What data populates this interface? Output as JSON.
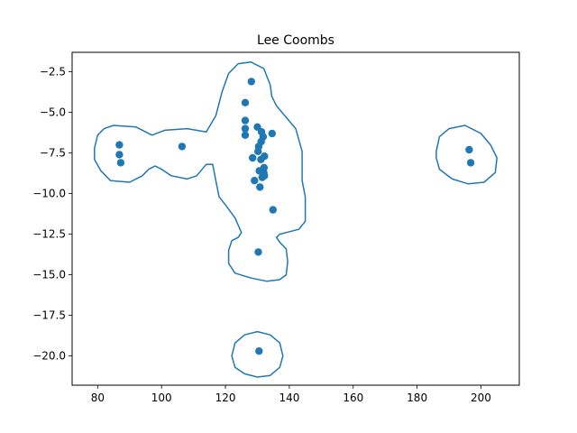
{
  "chart_data": {
    "type": "scatter",
    "title": "Lee Coombs",
    "xlabel": "",
    "ylabel": "",
    "xlim": [
      72,
      212
    ],
    "ylim": [
      -21.8,
      -1.3
    ],
    "xticks": [
      80,
      100,
      120,
      140,
      160,
      180,
      200
    ],
    "xtick_labels": [
      "80",
      "100",
      "120",
      "140",
      "160",
      "180",
      "200"
    ],
    "yticks": [
      -2.5,
      -5.0,
      -7.5,
      -10.0,
      -12.5,
      -15.0,
      -17.5,
      -20.0
    ],
    "ytick_labels": [
      "−2.5",
      "−5.0",
      "−7.5",
      "−10.0",
      "−12.5",
      "−15.0",
      "−17.5",
      "−20.0"
    ],
    "grid": false,
    "color": "#1f77b4",
    "series": [
      {
        "points": [
          [
            86.8,
            -7.0
          ],
          [
            86.8,
            -7.6
          ],
          [
            87.2,
            -8.1
          ],
          [
            106.4,
            -7.1
          ],
          [
            128.1,
            -3.1
          ],
          [
            126.2,
            -4.4
          ],
          [
            126.2,
            -5.5
          ],
          [
            126.2,
            -6.0
          ],
          [
            126.2,
            -6.4
          ],
          [
            130.0,
            -5.9
          ],
          [
            131.3,
            -6.2
          ],
          [
            131.8,
            -6.5
          ],
          [
            134.6,
            -6.3
          ],
          [
            131.2,
            -6.8
          ],
          [
            130.4,
            -7.1
          ],
          [
            130.2,
            -7.4
          ],
          [
            128.5,
            -7.8
          ],
          [
            131.1,
            -7.9
          ],
          [
            132.2,
            -7.7
          ],
          [
            132.1,
            -8.4
          ],
          [
            132.0,
            -8.7
          ],
          [
            130.6,
            -8.6
          ],
          [
            132.2,
            -8.9
          ],
          [
            131.5,
            -9.0
          ],
          [
            129.1,
            -9.2
          ],
          [
            130.8,
            -9.6
          ],
          [
            134.9,
            -11.0
          ],
          [
            130.3,
            -13.6
          ],
          [
            130.5,
            -19.7
          ],
          [
            196.3,
            -7.3
          ],
          [
            196.8,
            -8.1
          ]
        ]
      }
    ],
    "contours": [
      [
        [
          85,
          -5.8
        ],
        [
          92,
          -5.9
        ],
        [
          97,
          -6.4
        ],
        [
          101,
          -6.1
        ],
        [
          108,
          -6.0
        ],
        [
          114,
          -6.2
        ],
        [
          117,
          -5.2
        ],
        [
          119,
          -3.7
        ],
        [
          121,
          -2.6
        ],
        [
          124,
          -2.0
        ],
        [
          128,
          -1.9
        ],
        [
          132,
          -2.3
        ],
        [
          134,
          -3.3
        ],
        [
          134.5,
          -4.0
        ],
        [
          136,
          -4.6
        ],
        [
          139,
          -5.3
        ],
        [
          142,
          -6.0
        ],
        [
          144,
          -7.4
        ],
        [
          144,
          -9.2
        ],
        [
          145,
          -10.2
        ],
        [
          145,
          -11.7
        ],
        [
          143,
          -12.2
        ],
        [
          139,
          -12.4
        ],
        [
          137,
          -12.5
        ],
        [
          136,
          -12.7
        ],
        [
          137,
          -13.0
        ],
        [
          139,
          -13.4
        ],
        [
          139.5,
          -14.2
        ],
        [
          139,
          -15.0
        ],
        [
          137,
          -15.3
        ],
        [
          133,
          -15.4
        ],
        [
          128,
          -15.2
        ],
        [
          123,
          -14.9
        ],
        [
          121,
          -14.3
        ],
        [
          121,
          -13.5
        ],
        [
          122,
          -12.9
        ],
        [
          124,
          -12.7
        ],
        [
          125,
          -12.4
        ],
        [
          123,
          -11.5
        ],
        [
          120,
          -10.7
        ],
        [
          118,
          -10.2
        ],
        [
          117,
          -9.2
        ],
        [
          116,
          -8.2
        ],
        [
          114,
          -8.2
        ],
        [
          111,
          -8.9
        ],
        [
          108,
          -9.1
        ],
        [
          103,
          -8.9
        ],
        [
          100,
          -8.5
        ],
        [
          98,
          -8.3
        ],
        [
          96,
          -8.5
        ],
        [
          94,
          -8.9
        ],
        [
          90,
          -9.3
        ],
        [
          84,
          -9.2
        ],
        [
          81,
          -8.6
        ],
        [
          79,
          -7.9
        ],
        [
          79,
          -7.2
        ],
        [
          80,
          -6.4
        ],
        [
          82,
          -6.0
        ],
        [
          85,
          -5.8
        ]
      ],
      [
        [
          122,
          -20.0
        ],
        [
          123,
          -19.2
        ],
        [
          126,
          -18.7
        ],
        [
          130,
          -18.5
        ],
        [
          134,
          -18.7
        ],
        [
          137,
          -19.2
        ],
        [
          138,
          -20.0
        ],
        [
          137,
          -20.7
        ],
        [
          134,
          -21.2
        ],
        [
          130,
          -21.3
        ],
        [
          126,
          -21.1
        ],
        [
          123,
          -20.7
        ],
        [
          122,
          -20.0
        ]
      ],
      [
        [
          186,
          -7.4
        ],
        [
          187,
          -6.5
        ],
        [
          190,
          -6.0
        ],
        [
          195,
          -5.8
        ],
        [
          200,
          -6.3
        ],
        [
          203,
          -7.0
        ],
        [
          205,
          -7.8
        ],
        [
          204.5,
          -8.7
        ],
        [
          201,
          -9.3
        ],
        [
          196,
          -9.4
        ],
        [
          191,
          -9.1
        ],
        [
          187,
          -8.5
        ],
        [
          186,
          -7.8
        ],
        [
          186,
          -7.4
        ]
      ]
    ]
  }
}
